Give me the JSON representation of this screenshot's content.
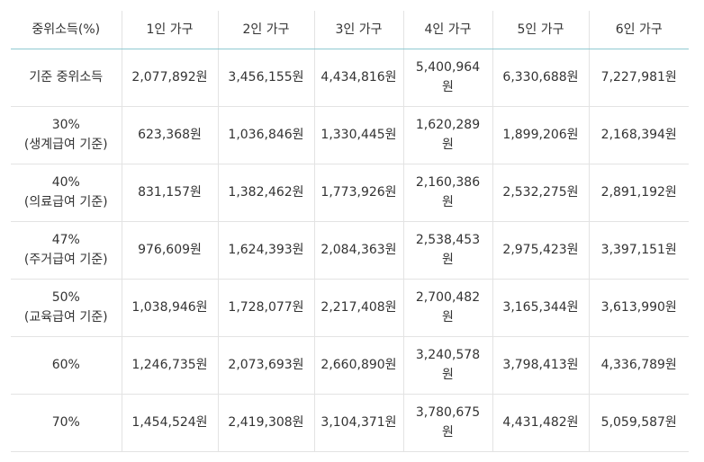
{
  "table": {
    "headers": [
      "중위소득(%)",
      "1인 가구",
      "2인 가구",
      "3인 가구",
      "4인 가구",
      "5인 가구",
      "6인 가구"
    ],
    "rows": [
      {
        "label": [
          "기준 중위소득"
        ],
        "values": [
          "2,077,892원",
          "3,456,155원",
          "4,434,816원",
          "5,400,964원",
          "6,330,688원",
          "7,227,981원"
        ]
      },
      {
        "label": [
          "30%",
          "(생계급여 기준)"
        ],
        "values": [
          "623,368원",
          "1,036,846원",
          "1,330,445원",
          "1,620,289원",
          "1,899,206원",
          "2,168,394원"
        ]
      },
      {
        "label": [
          "40%",
          "(의료급여 기준)"
        ],
        "values": [
          "831,157원",
          "1,382,462원",
          "1,773,926원",
          "2,160,386원",
          "2,532,275원",
          "2,891,192원"
        ]
      },
      {
        "label": [
          "47%",
          "(주거급여 기준)"
        ],
        "values": [
          "976,609원",
          "1,624,393원",
          "2,084,363원",
          "2,538,453원",
          "2,975,423원",
          "3,397,151원"
        ]
      },
      {
        "label": [
          "50%",
          "(교육급여 기준)"
        ],
        "values": [
          "1,038,946원",
          "1,728,077원",
          "2,217,408원",
          "2,700,482원",
          "3,165,344원",
          "3,613,990원"
        ]
      },
      {
        "label": [
          "60%"
        ],
        "values": [
          "1,246,735원",
          "2,073,693원",
          "2,660,890원",
          "3,240,578원",
          "3,798,413원",
          "4,336,789원"
        ]
      },
      {
        "label": [
          "70%"
        ],
        "values": [
          "1,454,524원",
          "2,419,308원",
          "3,104,371원",
          "3,780,675원",
          "4,431,482원",
          "5,059,587원"
        ]
      }
    ]
  }
}
